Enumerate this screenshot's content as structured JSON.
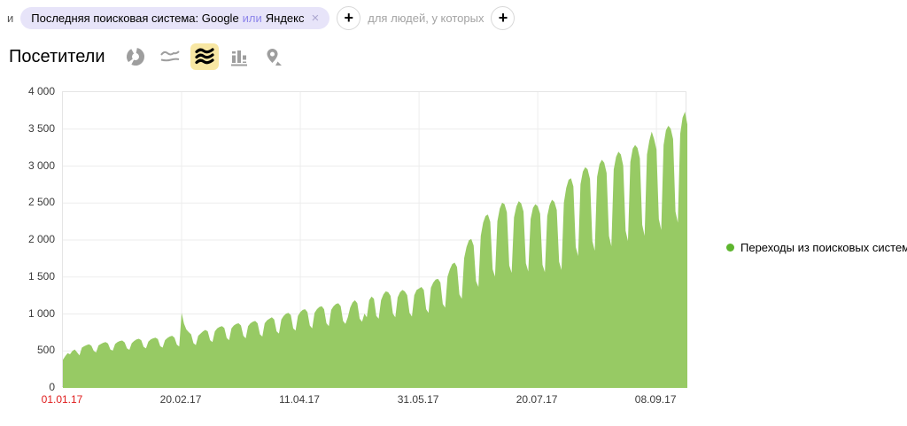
{
  "filter_bar": {
    "conjunction": "и",
    "segment_pill": {
      "text_before_or": "Последняя поисковая система: Google",
      "or_word": "или",
      "text_after_or": "Яндекс",
      "remove_icon": "×"
    },
    "add_segment_label": "+",
    "for_people_text": "для людей, у которых",
    "add_people_condition_label": "+"
  },
  "chart_header": {
    "title": "Посетители",
    "chart_type_icons": [
      {
        "name": "pie-chart-icon",
        "selected": false
      },
      {
        "name": "line-chart-icon",
        "selected": false
      },
      {
        "name": "area-chart-icon",
        "selected": true
      },
      {
        "name": "column-chart-icon",
        "selected": false
      },
      {
        "name": "geo-map-icon",
        "selected": false
      }
    ]
  },
  "legend": {
    "label": "Переходы из поисковых систем",
    "color": "#5db52e"
  },
  "colors": {
    "area_green": "#97ca64",
    "legend_green": "#5db52e",
    "selected_icon_bg": "#f8e7a3",
    "pill_bg": "#e7e4f9",
    "pill_or": "#8d85ea",
    "gridline": "#ededed",
    "red_label": "#e01e1e"
  },
  "chart_data": {
    "type": "area",
    "title": "Посетители",
    "ylabel": "",
    "xlabel": "",
    "ylim": [
      0,
      4000
    ],
    "grid": true,
    "legend_position": "right",
    "y_ticks": [
      0,
      500,
      1000,
      1500,
      2000,
      2500,
      3000,
      3500,
      4000
    ],
    "y_tick_labels": [
      "0",
      "500",
      "1 000",
      "1 500",
      "2 000",
      "2 500",
      "3 000",
      "3 500",
      "4 000"
    ],
    "x_tick_labels": [
      "01.01.17",
      "20.02.17",
      "11.04.17",
      "31.05.17",
      "20.07.17",
      "08.09.17"
    ],
    "x_tick_day_indices": [
      0,
      50,
      100,
      150,
      200,
      250
    ],
    "x_first_label_is_holiday": true,
    "start_date": "01.01.17",
    "end_date_approx": "21.09.17",
    "x_unit": "day",
    "series": [
      {
        "name": "Переходы из поисковых систем",
        "color": "#97ca64",
        "values": [
          380,
          430,
          470,
          455,
          500,
          520,
          480,
          440,
          545,
          565,
          580,
          590,
          570,
          500,
          480,
          575,
          595,
          610,
          620,
          600,
          520,
          505,
          595,
          620,
          635,
          640,
          615,
          535,
          515,
          605,
          635,
          655,
          665,
          645,
          555,
          535,
          625,
          655,
          670,
          680,
          660,
          565,
          545,
          645,
          675,
          695,
          705,
          680,
          585,
          560,
          1015,
          870,
          790,
          755,
          725,
          605,
          580,
          705,
          735,
          765,
          785,
          765,
          645,
          620,
          765,
          805,
          825,
          835,
          810,
          675,
          645,
          805,
          845,
          865,
          875,
          845,
          705,
          670,
          835,
          875,
          895,
          905,
          875,
          725,
          695,
          875,
          915,
          935,
          955,
          925,
          765,
          735,
          925,
          975,
          1005,
          1015,
          985,
          805,
          775,
          975,
          1025,
          1055,
          1065,
          1025,
          845,
          805,
          1015,
          1065,
          1095,
          1105,
          1065,
          875,
          835,
          1055,
          1105,
          1135,
          1145,
          1105,
          905,
          865,
          955,
          1085,
          1155,
          1185,
          1145,
          935,
          895,
          1005,
          955,
          1185,
          1235,
          1205,
          975,
          935,
          1185,
          1265,
          1305,
          1295,
          1245,
          1005,
          955,
          1225,
          1295,
          1325,
          1305,
          1255,
          1015,
          965,
          1255,
          1325,
          1345,
          1365,
          1325,
          1065,
          1015,
          1355,
          1425,
          1465,
          1475,
          1425,
          1135,
          1085,
          1505,
          1605,
          1675,
          1695,
          1635,
          1265,
          1205,
          1755,
          1905,
          1995,
          2015,
          1925,
          1445,
          1365,
          2055,
          2235,
          2325,
          2345,
          2245,
          1605,
          1505,
          2255,
          2425,
          2505,
          2485,
          2375,
          1655,
          1555,
          2305,
          2455,
          2525,
          2495,
          2385,
          1685,
          1575,
          2285,
          2435,
          2485,
          2455,
          2355,
          1665,
          1565,
          2325,
          2475,
          2545,
          2515,
          2405,
          1705,
          1595,
          2505,
          2705,
          2815,
          2835,
          2725,
          1905,
          1785,
          2755,
          2925,
          2985,
          2955,
          2825,
          1985,
          1855,
          2855,
          3025,
          3085,
          3045,
          2905,
          2055,
          1915,
          2955,
          3125,
          3195,
          3155,
          3005,
          2125,
          1985,
          3055,
          3235,
          3285,
          3245,
          3105,
          2205,
          2055,
          3155,
          3345,
          3465,
          3365,
          3225,
          2285,
          2135,
          3285,
          3485,
          3545,
          3505,
          3365,
          2385,
          2235,
          3435,
          3655,
          3735,
          3565
        ]
      }
    ]
  }
}
